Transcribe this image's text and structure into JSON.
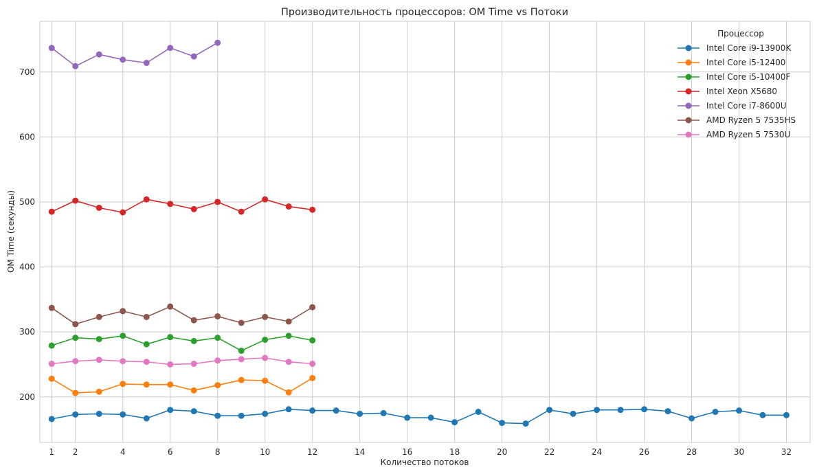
{
  "chart_data": {
    "type": "line",
    "title": "Производительность процессоров: OM Time vs Потоки",
    "xlabel": "Количество потоков",
    "ylabel": "OM Time (секунды)",
    "xlim": [
      0.5,
      33
    ],
    "ylim": [
      130,
      778
    ],
    "xticks": [
      1,
      2,
      4,
      6,
      8,
      10,
      12,
      14,
      16,
      18,
      20,
      22,
      24,
      26,
      28,
      30,
      32
    ],
    "yticks": [
      200,
      300,
      400,
      500,
      600,
      700
    ],
    "grid": true,
    "legend": {
      "title": "Процессор",
      "position": "top-right"
    },
    "series": [
      {
        "name": "Intel Core i9-13900K",
        "color": "#1f77b4",
        "x": [
          1,
          2,
          3,
          4,
          5,
          6,
          7,
          8,
          9,
          10,
          11,
          12,
          13,
          14,
          15,
          16,
          17,
          18,
          19,
          20,
          21,
          22,
          23,
          24,
          25,
          26,
          27,
          28,
          29,
          30,
          31,
          32
        ],
        "values": [
          166,
          173,
          174,
          173,
          167,
          180,
          178,
          171,
          171,
          174,
          181,
          179,
          179,
          174,
          175,
          168,
          168,
          161,
          177,
          160,
          159,
          180,
          174,
          180,
          180,
          181,
          178,
          167,
          177,
          179,
          172,
          172
        ]
      },
      {
        "name": "Intel Core i5-12400",
        "color": "#ff7f0e",
        "x": [
          1,
          2,
          3,
          4,
          5,
          6,
          7,
          8,
          9,
          10,
          11,
          12
        ],
        "values": [
          228,
          206,
          208,
          220,
          219,
          219,
          210,
          218,
          226,
          225,
          207,
          229
        ]
      },
      {
        "name": "Intel Core i5-10400F",
        "color": "#2ca02c",
        "x": [
          1,
          2,
          3,
          4,
          5,
          6,
          7,
          8,
          9,
          10,
          11,
          12
        ],
        "values": [
          279,
          291,
          289,
          294,
          281,
          292,
          286,
          291,
          271,
          288,
          294,
          287
        ]
      },
      {
        "name": "Intel Xeon X5680",
        "color": "#d62728",
        "x": [
          1,
          2,
          3,
          4,
          5,
          6,
          7,
          8,
          9,
          10,
          11,
          12
        ],
        "values": [
          485,
          502,
          491,
          484,
          504,
          497,
          489,
          500,
          485,
          504,
          493,
          488
        ]
      },
      {
        "name": "Intel Core i7-8600U",
        "color": "#9467bd",
        "x": [
          1,
          2,
          3,
          4,
          5,
          6,
          7,
          8
        ],
        "values": [
          737,
          709,
          727,
          719,
          714,
          737,
          724,
          745
        ]
      },
      {
        "name": "AMD Ryzen 5 7535HS",
        "color": "#8c564b",
        "x": [
          1,
          2,
          3,
          4,
          5,
          6,
          7,
          8,
          9,
          10,
          11,
          12
        ],
        "values": [
          337,
          312,
          323,
          332,
          323,
          339,
          318,
          324,
          314,
          323,
          316,
          338
        ]
      },
      {
        "name": "AMD Ryzen 5 7530U",
        "color": "#e377c2",
        "x": [
          1,
          2,
          3,
          4,
          5,
          6,
          7,
          8,
          9,
          10,
          11,
          12
        ],
        "values": [
          251,
          255,
          257,
          255,
          254,
          250,
          251,
          256,
          258,
          260,
          254,
          251
        ]
      }
    ]
  }
}
